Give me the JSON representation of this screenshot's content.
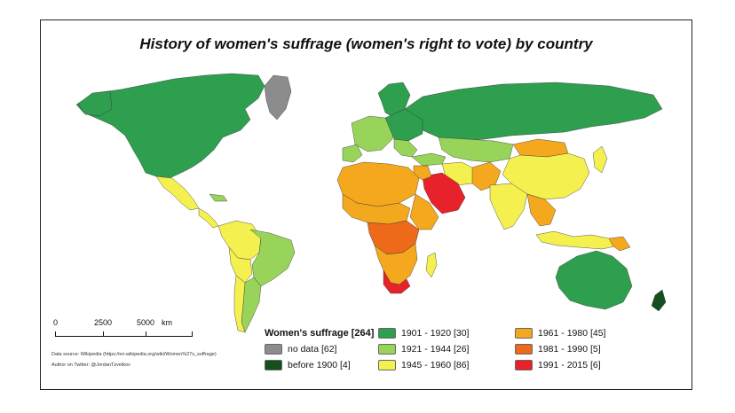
{
  "title": "History of women's suffrage (women's right to vote) by country",
  "scale": {
    "ticks": [
      "0",
      "2500",
      "5000"
    ],
    "unit": "km"
  },
  "source": "Data source: Wikipedia (https://en.wikipedia.org/wiki/Women%27s_suffrage)",
  "author": "Author on Twitter: @JordanTzvetkov",
  "legend": {
    "title": "Women's suffrage [264]",
    "items": [
      {
        "label": "no data [62]",
        "color": "#8c8c8c"
      },
      {
        "label": "before 1900 [4]",
        "color": "#14501e"
      },
      {
        "label": "1901 - 1920 [30]",
        "color": "#2e9e4f"
      },
      {
        "label": "1921 - 1944 [26]",
        "color": "#98d45a"
      },
      {
        "label": "1945 - 1960 [86]",
        "color": "#f4f050"
      },
      {
        "label": "1961 - 1980 [45]",
        "color": "#f4a81e"
      },
      {
        "label": "1981 - 1990 [5]",
        "color": "#ec6a1a"
      },
      {
        "label": "1991 - 2015 [6]",
        "color": "#e8222a"
      }
    ]
  }
}
